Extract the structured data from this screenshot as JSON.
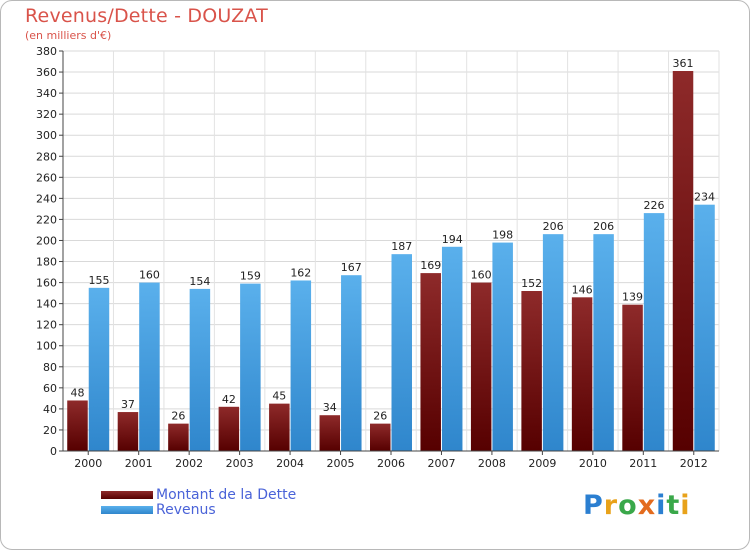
{
  "chart_data": {
    "type": "bar",
    "title": "Revenus/Dette - DOUZAT",
    "subtitle": "(en milliers d'€)",
    "categories": [
      "2000",
      "2001",
      "2002",
      "2003",
      "2004",
      "2005",
      "2006",
      "2007",
      "2008",
      "2009",
      "2010",
      "2011",
      "2012"
    ],
    "series": [
      {
        "name": "Montant de la Dette",
        "color": "#8b1a1a",
        "values": [
          48,
          37,
          26,
          42,
          45,
          34,
          26,
          169,
          160,
          152,
          146,
          139,
          361
        ]
      },
      {
        "name": "Revenus",
        "color": "#4aa3e6",
        "values": [
          155,
          160,
          154,
          159,
          162,
          167,
          187,
          194,
          198,
          206,
          206,
          226,
          234
        ]
      }
    ],
    "ylim": [
      0,
      380
    ],
    "ytick_step": 20,
    "grid": true,
    "legend_position": "bottom-left"
  },
  "logo": {
    "letters": [
      {
        "ch": "P",
        "color": "#2b7fd1"
      },
      {
        "ch": "r",
        "color": "#e8a21a"
      },
      {
        "ch": "o",
        "color": "#3aa84a"
      },
      {
        "ch": "x",
        "color": "#e36b1e"
      },
      {
        "ch": "i",
        "color": "#2b7fd1"
      },
      {
        "ch": "t",
        "color": "#3aa84a"
      },
      {
        "ch": "i",
        "color": "#e8a21a"
      }
    ]
  }
}
